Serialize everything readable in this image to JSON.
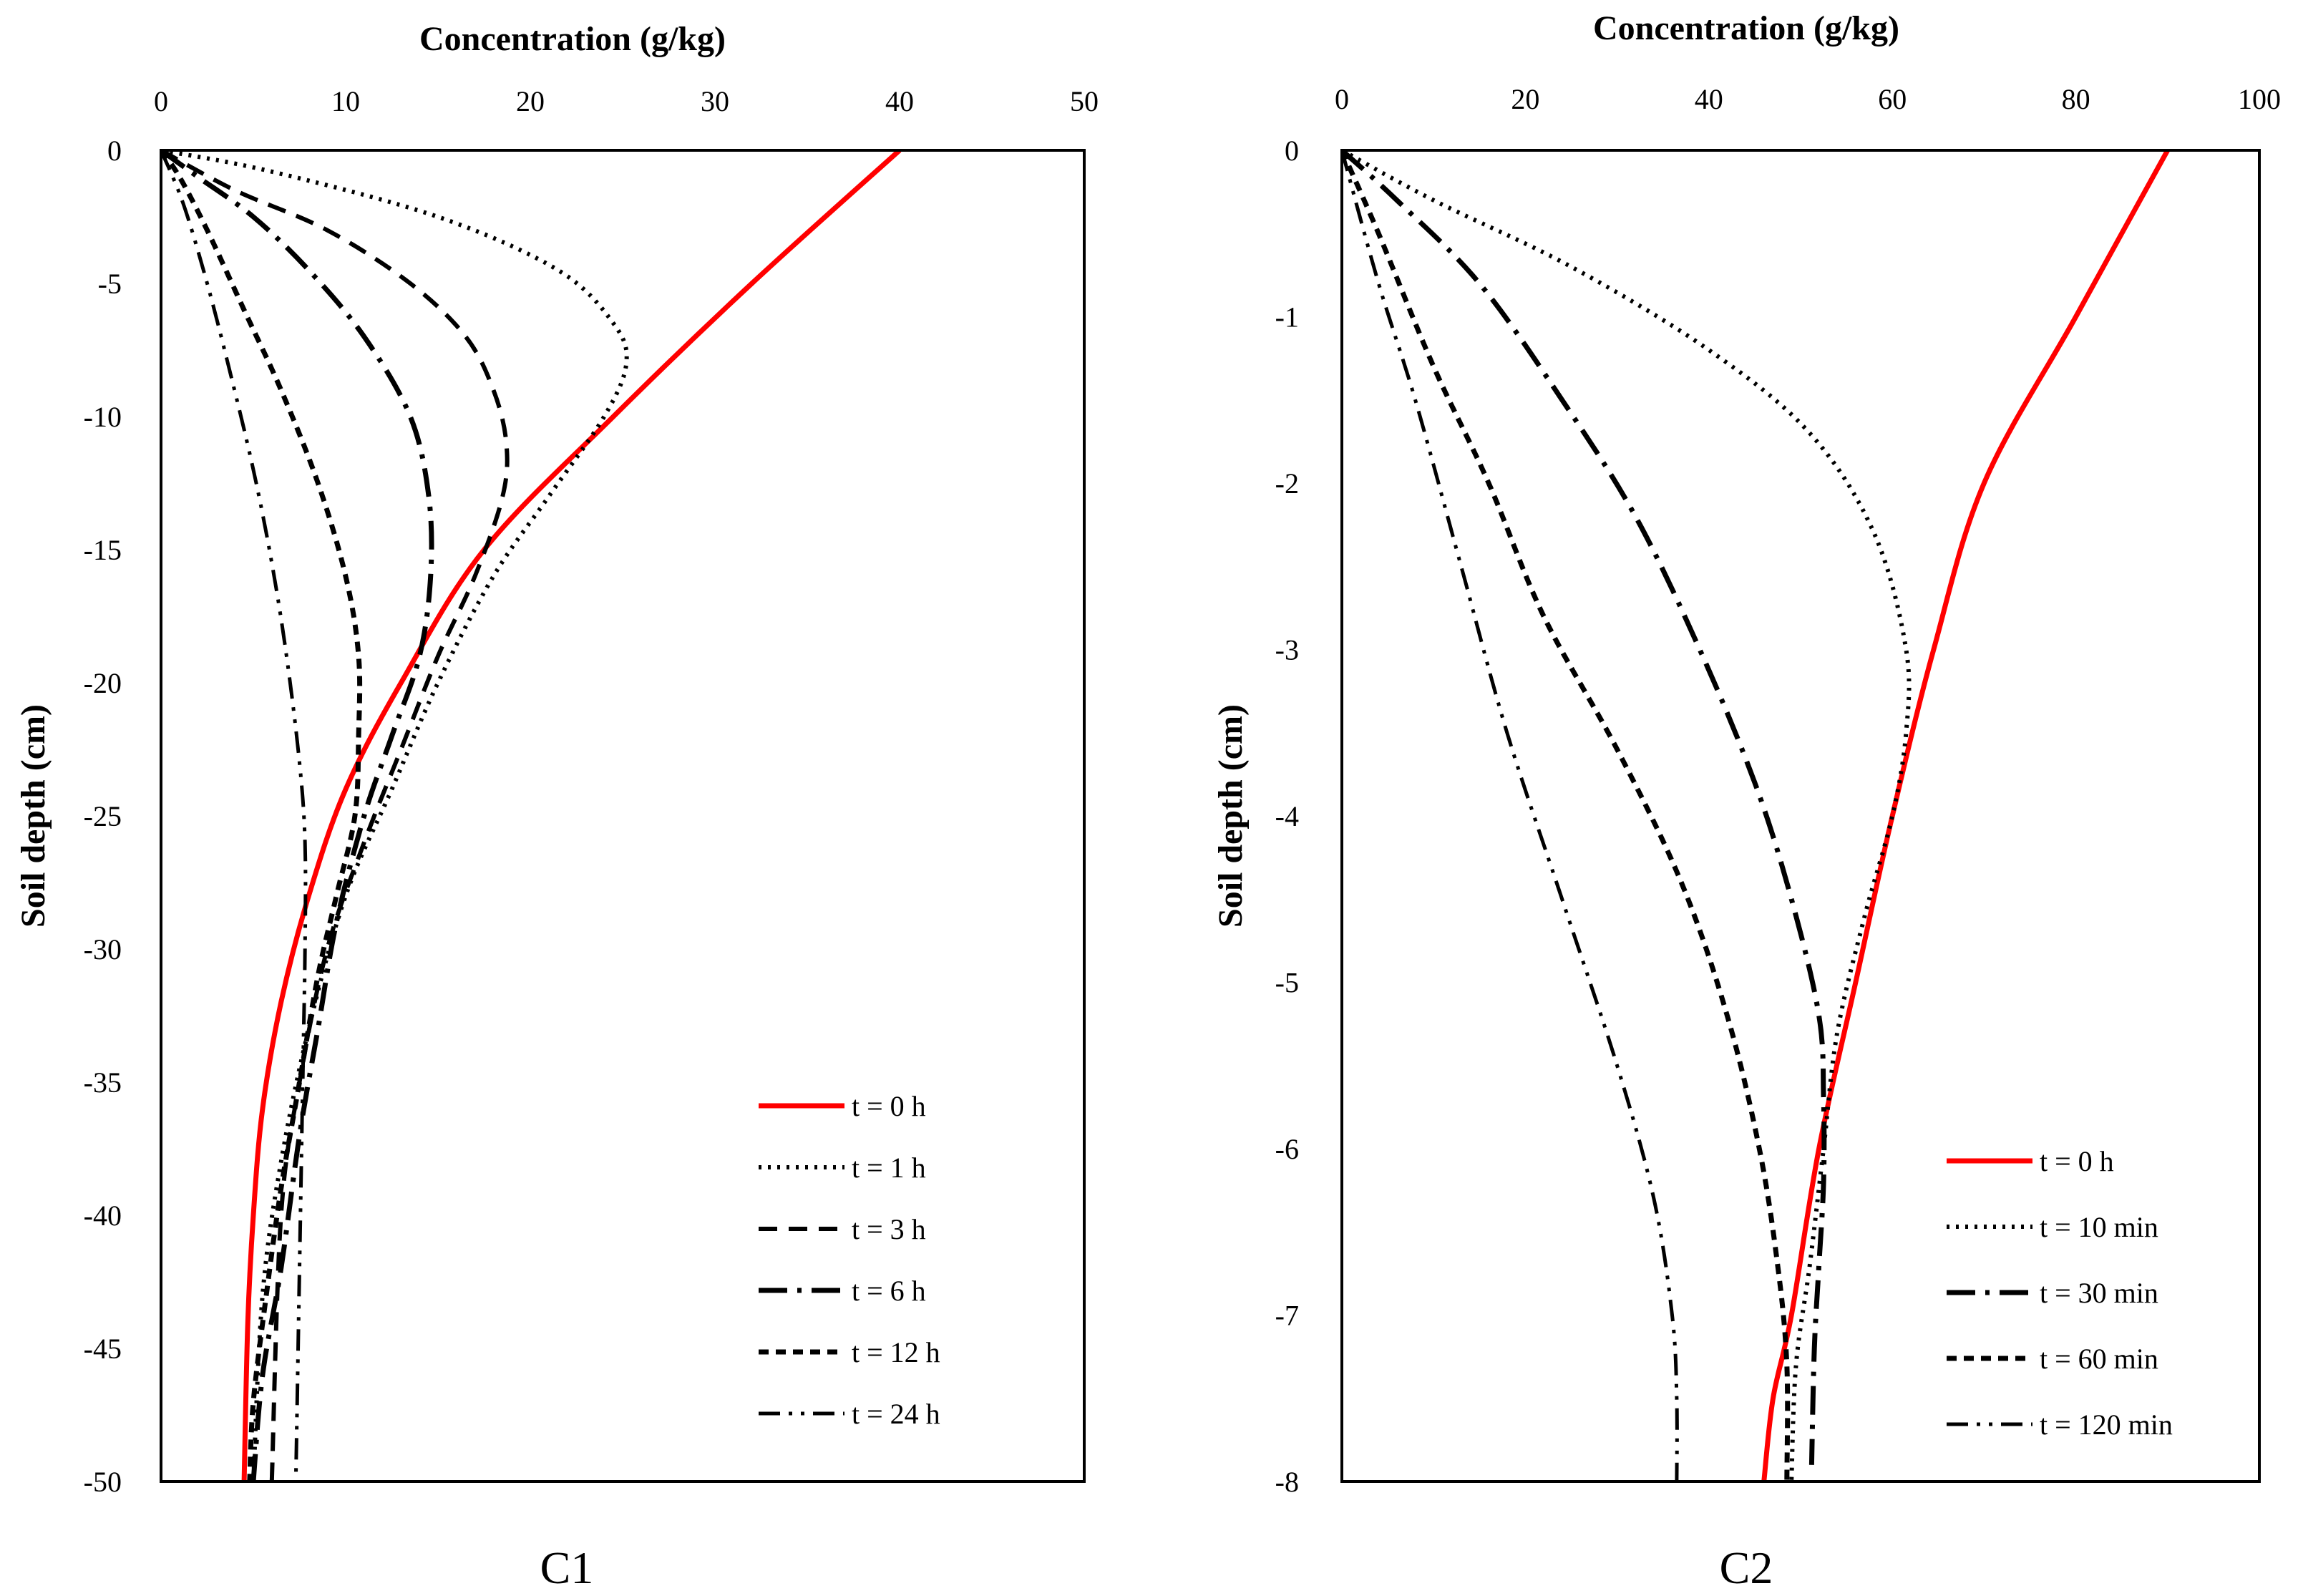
{
  "chart_data": [
    {
      "type": "line",
      "panel_label": "C1",
      "xlabel": "Concentration (g/kg)",
      "ylabel": "Soil depth (cm)",
      "xlim": [
        0,
        50
      ],
      "ylim": [
        -50,
        0
      ],
      "xticks": [
        "0",
        "10",
        "20",
        "30",
        "40",
        "50"
      ],
      "yticks": [
        "0",
        "-5",
        "-10",
        "-15",
        "-20",
        "-25",
        "-30",
        "-35",
        "-40",
        "-45",
        "-50"
      ],
      "legend_position": "bottom-right",
      "series": [
        {
          "name": "t = 0 h",
          "style": "solid",
          "color": "#ff0000",
          "points": [
            [
              40,
              0
            ],
            [
              32,
              -5
            ],
            [
              24.5,
              -10
            ],
            [
              17.5,
              -15
            ],
            [
              13,
              -20
            ],
            [
              10,
              -24
            ],
            [
              8,
              -28
            ],
            [
              6.5,
              -32
            ],
            [
              5.5,
              -36
            ],
            [
              5,
              -40
            ],
            [
              4.7,
              -44
            ],
            [
              4.5,
              -50
            ]
          ]
        },
        {
          "name": "t = 1 h",
          "style": "dotted",
          "color": "#000000",
          "points": [
            [
              0,
              0
            ],
            [
              6,
              -0.8
            ],
            [
              15,
              -2.5
            ],
            [
              21.5,
              -4.5
            ],
            [
              24.5,
              -6.5
            ],
            [
              25.2,
              -8
            ],
            [
              24,
              -10
            ],
            [
              21,
              -13
            ],
            [
              18,
              -16
            ],
            [
              15,
              -20
            ],
            [
              12.5,
              -24
            ],
            [
              10,
              -28
            ],
            [
              8,
              -33
            ],
            [
              6.5,
              -38
            ],
            [
              5.5,
              -43
            ],
            [
              5,
              -50
            ]
          ]
        },
        {
          "name": "t = 3 h",
          "style": "dashed",
          "color": "#000000",
          "points": [
            [
              0,
              0
            ],
            [
              4,
              -1.5
            ],
            [
              9,
              -3
            ],
            [
              13.5,
              -5
            ],
            [
              16.5,
              -7
            ],
            [
              18,
              -9
            ],
            [
              18.7,
              -11
            ],
            [
              18.5,
              -13
            ],
            [
              17,
              -16
            ],
            [
              15,
              -19
            ],
            [
              13,
              -22.5
            ],
            [
              11,
              -26
            ],
            [
              9,
              -30
            ],
            [
              7.5,
              -35
            ],
            [
              6.5,
              -40
            ],
            [
              6,
              -50
            ]
          ]
        },
        {
          "name": "t = 6 h",
          "style": "longdashdot",
          "color": "#000000",
          "points": [
            [
              0,
              0
            ],
            [
              2,
              -1
            ],
            [
              5,
              -2.5
            ],
            [
              8,
              -4.5
            ],
            [
              11,
              -7
            ],
            [
              13.5,
              -10
            ],
            [
              14.5,
              -13
            ],
            [
              14.6,
              -16
            ],
            [
              14,
              -19
            ],
            [
              12.5,
              -22
            ],
            [
              11,
              -25
            ],
            [
              9.5,
              -29
            ],
            [
              8.5,
              -33
            ],
            [
              7.5,
              -37
            ],
            [
              6.5,
              -42
            ],
            [
              5.5,
              -46
            ],
            [
              5,
              -50
            ]
          ]
        },
        {
          "name": "t = 12 h",
          "style": "shortdash",
          "color": "#000000",
          "points": [
            [
              0,
              0
            ],
            [
              1,
              -1
            ],
            [
              2.5,
              -3
            ],
            [
              4.5,
              -6
            ],
            [
              6.5,
              -9
            ],
            [
              8.5,
              -12.5
            ],
            [
              10,
              -16
            ],
            [
              10.7,
              -19
            ],
            [
              10.7,
              -22
            ],
            [
              10.5,
              -25
            ],
            [
              9.5,
              -28
            ],
            [
              8.5,
              -31
            ],
            [
              7.5,
              -35
            ],
            [
              6.5,
              -39
            ],
            [
              5.7,
              -43
            ],
            [
              5,
              -47
            ],
            [
              4.8,
              -50
            ]
          ]
        },
        {
          "name": "t = 24 h",
          "style": "dashdotdot",
          "color": "#000000",
          "points": [
            [
              0,
              0
            ],
            [
              1.2,
              -2
            ],
            [
              2.5,
              -5
            ],
            [
              3.8,
              -8.5
            ],
            [
              5,
              -12
            ],
            [
              6,
              -15.5
            ],
            [
              6.8,
              -19
            ],
            [
              7.5,
              -23
            ],
            [
              7.8,
              -26
            ],
            [
              7.8,
              -30
            ],
            [
              7.7,
              -34
            ],
            [
              7.6,
              -38
            ],
            [
              7.5,
              -42
            ],
            [
              7.4,
              -46
            ],
            [
              7.3,
              -50
            ]
          ]
        }
      ]
    },
    {
      "type": "line",
      "panel_label": "C2",
      "xlabel": "Concentration (g/kg)",
      "ylabel": "Soil depth (cm)",
      "xlim": [
        0,
        100
      ],
      "ylim": [
        -8,
        0
      ],
      "xticks": [
        "0",
        "20",
        "40",
        "60",
        "80",
        "100"
      ],
      "yticks": [
        "0",
        "-1",
        "-2",
        "-3",
        "-4",
        "-5",
        "-6",
        "-7",
        "-8"
      ],
      "legend_position": "bottom-right",
      "series": [
        {
          "name": "t = 0 h",
          "style": "solid",
          "color": "#ff0000",
          "points": [
            [
              90,
              0
            ],
            [
              80,
              -1
            ],
            [
              70,
              -2
            ],
            [
              64.5,
              -3
            ],
            [
              60,
              -4
            ],
            [
              56,
              -5
            ],
            [
              52,
              -6
            ],
            [
              49,
              -7
            ],
            [
              47,
              -7.5
            ],
            [
              46,
              -8
            ]
          ]
        },
        {
          "name": "t = 10 min",
          "style": "dotted",
          "color": "#000000",
          "points": [
            [
              0,
              0
            ],
            [
              10,
              -0.3
            ],
            [
              25,
              -0.7
            ],
            [
              40,
              -1.2
            ],
            [
              51,
              -1.7
            ],
            [
              58,
              -2.3
            ],
            [
              61.5,
              -3
            ],
            [
              61.5,
              -3.5
            ],
            [
              60,
              -4
            ],
            [
              57,
              -4.6
            ],
            [
              54,
              -5.3
            ],
            [
              52.5,
              -6
            ],
            [
              51,
              -6.7
            ],
            [
              49.5,
              -7.3
            ],
            [
              49,
              -8
            ]
          ]
        },
        {
          "name": "t = 30 min",
          "style": "longdashdot",
          "color": "#000000",
          "points": [
            [
              0,
              0
            ],
            [
              6,
              -0.3
            ],
            [
              15,
              -0.8
            ],
            [
              24,
              -1.5
            ],
            [
              32,
              -2.2
            ],
            [
              39,
              -3
            ],
            [
              45,
              -3.8
            ],
            [
              49,
              -4.5
            ],
            [
              52,
              -5.2
            ],
            [
              52.5,
              -5.7
            ],
            [
              52.5,
              -6.2
            ],
            [
              52,
              -6.7
            ],
            [
              51.5,
              -7.2
            ],
            [
              51.2,
              -7.9
            ]
          ]
        },
        {
          "name": "t = 60 min",
          "style": "shortdash",
          "color": "#000000",
          "points": [
            [
              0,
              0
            ],
            [
              4,
              -0.5
            ],
            [
              10,
              -1.3
            ],
            [
              16,
              -2
            ],
            [
              22,
              -2.8
            ],
            [
              30,
              -3.6
            ],
            [
              37,
              -4.4
            ],
            [
              42,
              -5.2
            ],
            [
              45.5,
              -6
            ],
            [
              47.5,
              -6.7
            ],
            [
              48.5,
              -7.3
            ],
            [
              48.5,
              -8
            ]
          ]
        },
        {
          "name": "t = 120 min",
          "style": "dashdotdot",
          "color": "#000000",
          "points": [
            [
              0,
              0
            ],
            [
              4,
              -0.8
            ],
            [
              8,
              -1.5
            ],
            [
              13,
              -2.5
            ],
            [
              18,
              -3.5
            ],
            [
              24,
              -4.5
            ],
            [
              30,
              -5.5
            ],
            [
              34,
              -6.3
            ],
            [
              36,
              -7
            ],
            [
              36.5,
              -7.5
            ],
            [
              36.5,
              -8
            ]
          ]
        }
      ]
    }
  ]
}
